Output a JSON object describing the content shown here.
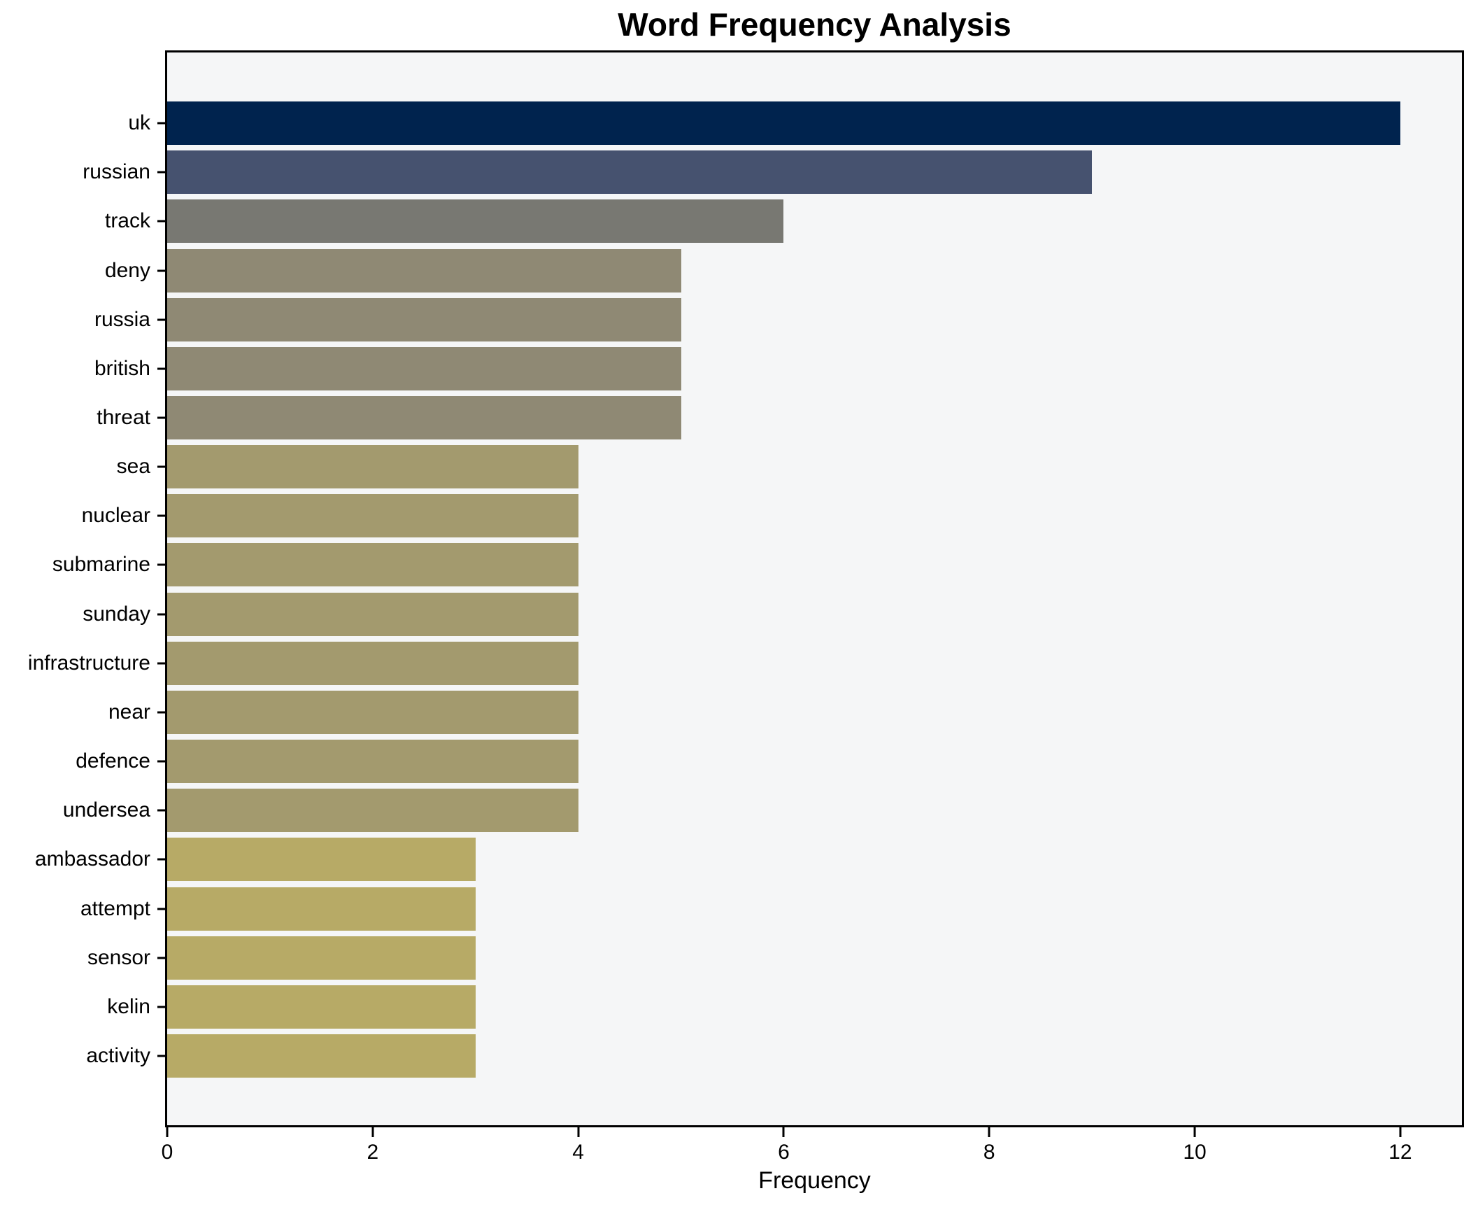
{
  "chart_data": {
    "type": "bar",
    "orientation": "horizontal",
    "title": "Word Frequency Analysis",
    "xlabel": "Frequency",
    "categories": [
      "uk",
      "russian",
      "track",
      "deny",
      "russia",
      "british",
      "threat",
      "sea",
      "nuclear",
      "submarine",
      "sunday",
      "infrastructure",
      "near",
      "defence",
      "undersea",
      "ambassador",
      "attempt",
      "sensor",
      "kelin",
      "activity"
    ],
    "values": [
      12,
      9,
      6,
      5,
      5,
      5,
      5,
      4,
      4,
      4,
      4,
      4,
      4,
      4,
      4,
      3,
      3,
      3,
      3,
      3
    ],
    "x_ticks": [
      0,
      2,
      4,
      6,
      8,
      10,
      12
    ],
    "xlim": [
      0,
      12.6
    ],
    "grid": false,
    "legend_position": "none",
    "colors_by_value": {
      "12": "#00234e",
      "9": "#46526f",
      "6": "#787872",
      "5": "#8f8974",
      "4": "#a39a6e",
      "3": "#b7aa66"
    },
    "plot_background": "#f5f6f7",
    "spine_color": "#000000"
  }
}
